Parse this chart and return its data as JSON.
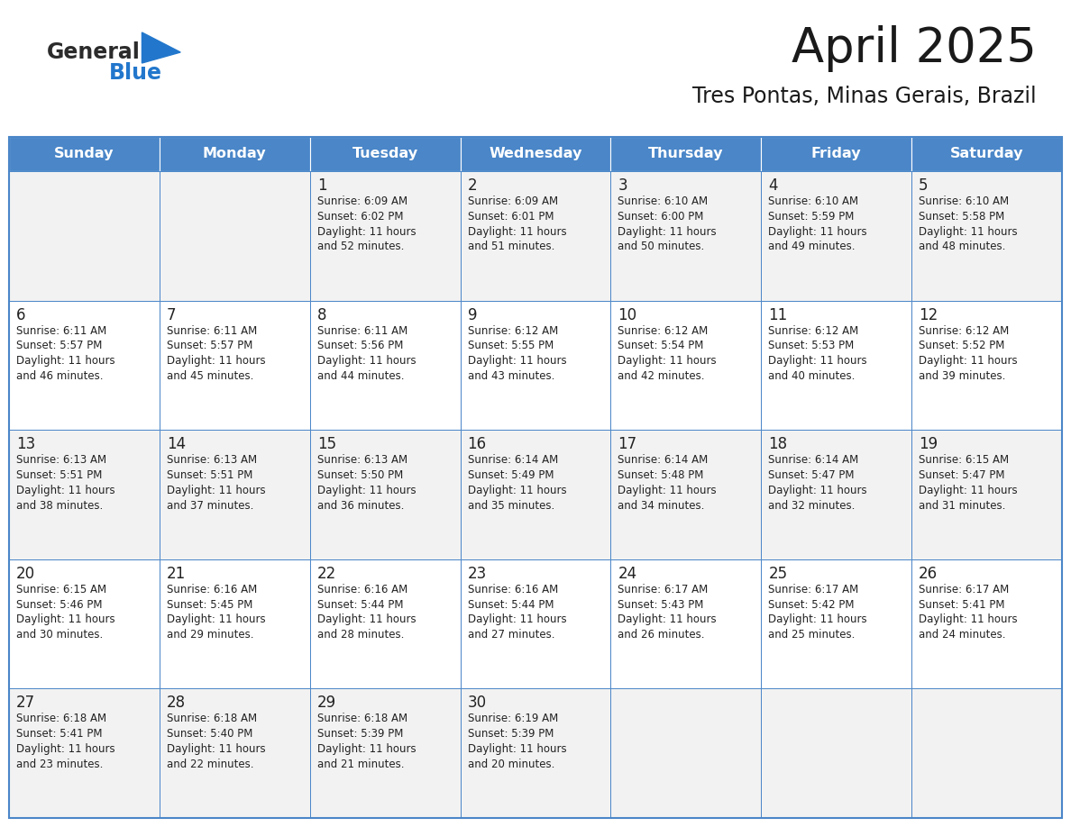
{
  "title": "April 2025",
  "subtitle": "Tres Pontas, Minas Gerais, Brazil",
  "header_color": "#4a86c8",
  "header_text_color": "#ffffff",
  "row_bg_even": "#f2f2f2",
  "row_bg_odd": "#ffffff",
  "border_color": "#4a86c8",
  "text_color": "#222222",
  "day_names": [
    "Sunday",
    "Monday",
    "Tuesday",
    "Wednesday",
    "Thursday",
    "Friday",
    "Saturday"
  ],
  "logo_general_color": "#2b2b2b",
  "logo_blue_color": "#2277cc",
  "calendar_data": [
    [
      "",
      "",
      "1\nSunrise: 6:09 AM\nSunset: 6:02 PM\nDaylight: 11 hours\nand 52 minutes.",
      "2\nSunrise: 6:09 AM\nSunset: 6:01 PM\nDaylight: 11 hours\nand 51 minutes.",
      "3\nSunrise: 6:10 AM\nSunset: 6:00 PM\nDaylight: 11 hours\nand 50 minutes.",
      "4\nSunrise: 6:10 AM\nSunset: 5:59 PM\nDaylight: 11 hours\nand 49 minutes.",
      "5\nSunrise: 6:10 AM\nSunset: 5:58 PM\nDaylight: 11 hours\nand 48 minutes."
    ],
    [
      "6\nSunrise: 6:11 AM\nSunset: 5:57 PM\nDaylight: 11 hours\nand 46 minutes.",
      "7\nSunrise: 6:11 AM\nSunset: 5:57 PM\nDaylight: 11 hours\nand 45 minutes.",
      "8\nSunrise: 6:11 AM\nSunset: 5:56 PM\nDaylight: 11 hours\nand 44 minutes.",
      "9\nSunrise: 6:12 AM\nSunset: 5:55 PM\nDaylight: 11 hours\nand 43 minutes.",
      "10\nSunrise: 6:12 AM\nSunset: 5:54 PM\nDaylight: 11 hours\nand 42 minutes.",
      "11\nSunrise: 6:12 AM\nSunset: 5:53 PM\nDaylight: 11 hours\nand 40 minutes.",
      "12\nSunrise: 6:12 AM\nSunset: 5:52 PM\nDaylight: 11 hours\nand 39 minutes."
    ],
    [
      "13\nSunrise: 6:13 AM\nSunset: 5:51 PM\nDaylight: 11 hours\nand 38 minutes.",
      "14\nSunrise: 6:13 AM\nSunset: 5:51 PM\nDaylight: 11 hours\nand 37 minutes.",
      "15\nSunrise: 6:13 AM\nSunset: 5:50 PM\nDaylight: 11 hours\nand 36 minutes.",
      "16\nSunrise: 6:14 AM\nSunset: 5:49 PM\nDaylight: 11 hours\nand 35 minutes.",
      "17\nSunrise: 6:14 AM\nSunset: 5:48 PM\nDaylight: 11 hours\nand 34 minutes.",
      "18\nSunrise: 6:14 AM\nSunset: 5:47 PM\nDaylight: 11 hours\nand 32 minutes.",
      "19\nSunrise: 6:15 AM\nSunset: 5:47 PM\nDaylight: 11 hours\nand 31 minutes."
    ],
    [
      "20\nSunrise: 6:15 AM\nSunset: 5:46 PM\nDaylight: 11 hours\nand 30 minutes.",
      "21\nSunrise: 6:16 AM\nSunset: 5:45 PM\nDaylight: 11 hours\nand 29 minutes.",
      "22\nSunrise: 6:16 AM\nSunset: 5:44 PM\nDaylight: 11 hours\nand 28 minutes.",
      "23\nSunrise: 6:16 AM\nSunset: 5:44 PM\nDaylight: 11 hours\nand 27 minutes.",
      "24\nSunrise: 6:17 AM\nSunset: 5:43 PM\nDaylight: 11 hours\nand 26 minutes.",
      "25\nSunrise: 6:17 AM\nSunset: 5:42 PM\nDaylight: 11 hours\nand 25 minutes.",
      "26\nSunrise: 6:17 AM\nSunset: 5:41 PM\nDaylight: 11 hours\nand 24 minutes."
    ],
    [
      "27\nSunrise: 6:18 AM\nSunset: 5:41 PM\nDaylight: 11 hours\nand 23 minutes.",
      "28\nSunrise: 6:18 AM\nSunset: 5:40 PM\nDaylight: 11 hours\nand 22 minutes.",
      "29\nSunrise: 6:18 AM\nSunset: 5:39 PM\nDaylight: 11 hours\nand 21 minutes.",
      "30\nSunrise: 6:19 AM\nSunset: 5:39 PM\nDaylight: 11 hours\nand 20 minutes.",
      "",
      "",
      ""
    ]
  ],
  "fig_width": 11.88,
  "fig_height": 9.18,
  "dpi": 100
}
